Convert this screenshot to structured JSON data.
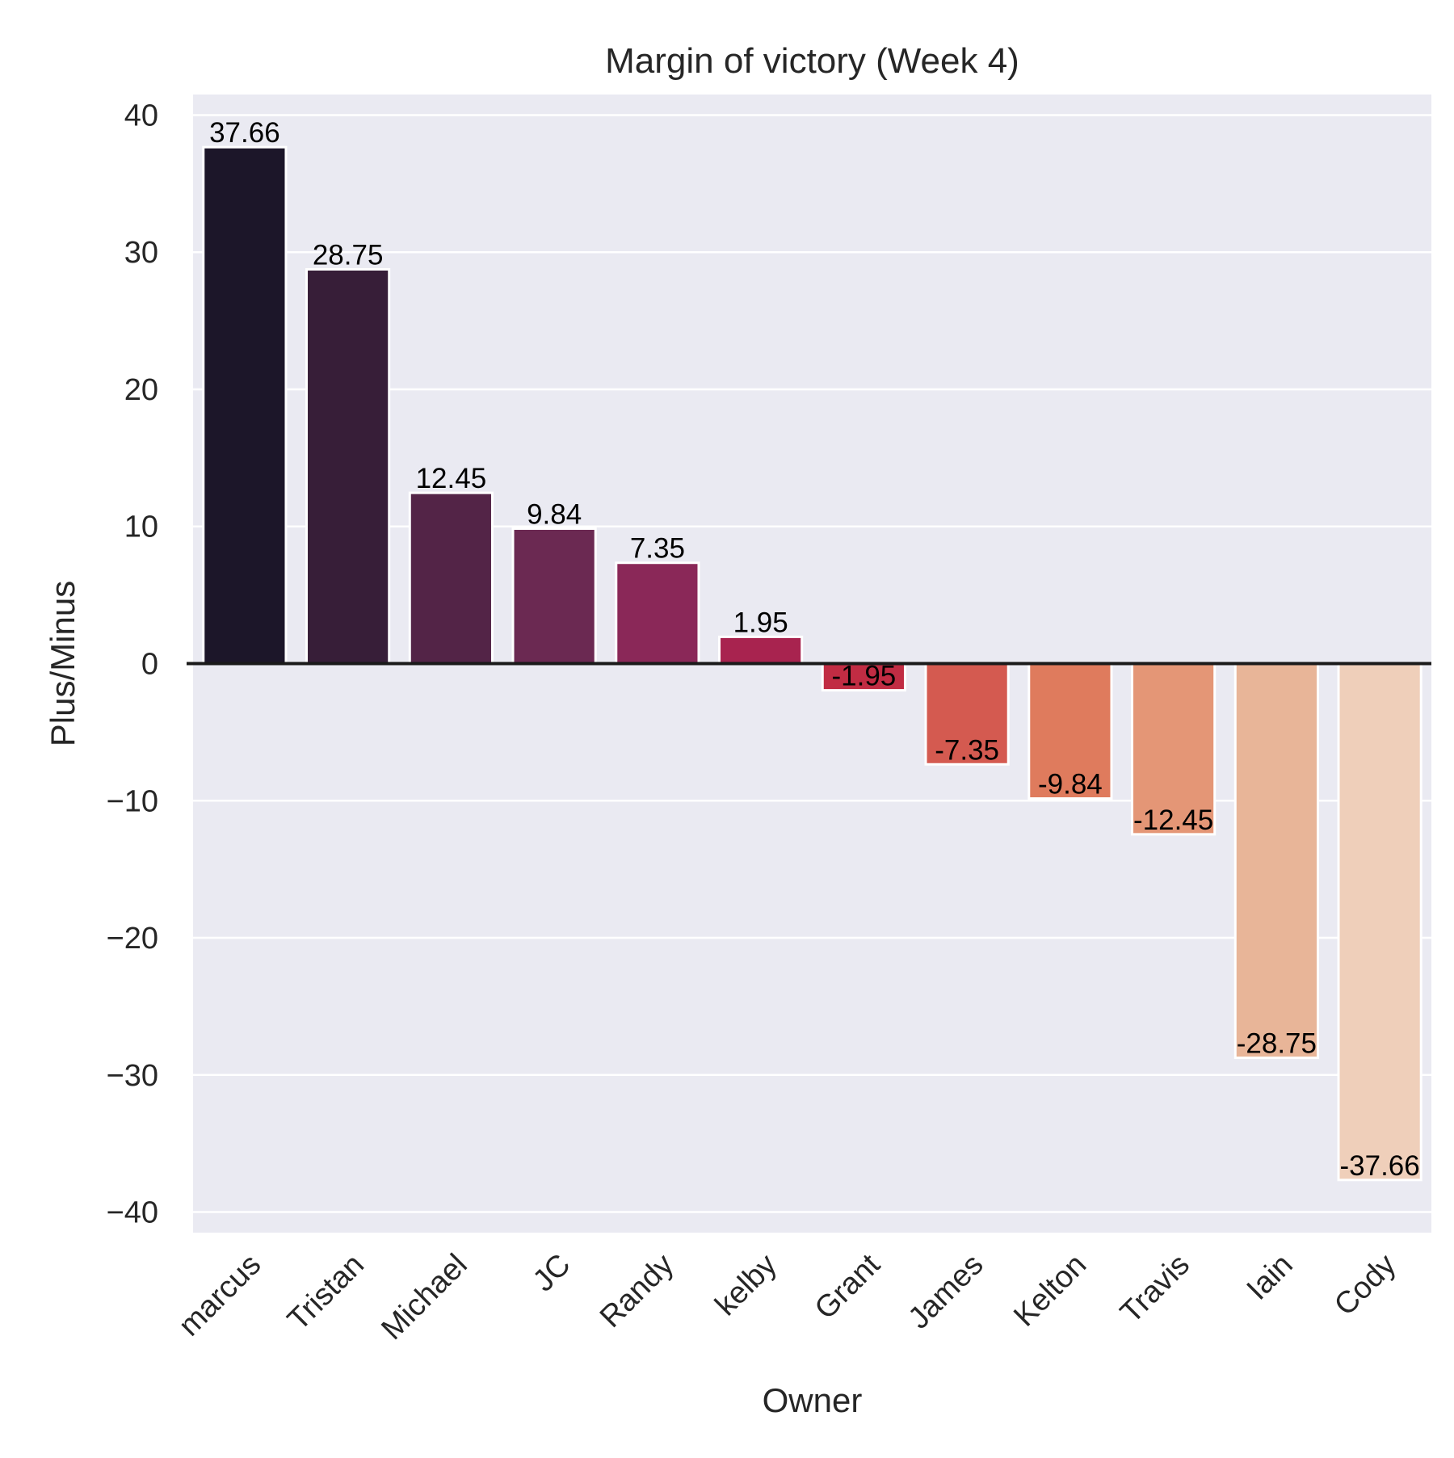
{
  "chart_data": {
    "type": "bar",
    "title": "Margin of victory (Week 4)",
    "xlabel": "Owner",
    "ylabel": "Plus/Minus",
    "categories": [
      "marcus",
      "Tristan",
      "Michael",
      "JC",
      "Randy",
      "kelby",
      "Grant",
      "James",
      "Kelton",
      "Travis",
      "Iain",
      "Cody"
    ],
    "values": [
      37.66,
      28.75,
      12.45,
      9.84,
      7.35,
      1.95,
      -1.95,
      -7.35,
      -9.84,
      -12.45,
      -28.75,
      -37.66
    ],
    "value_labels": [
      "37.66",
      "28.75",
      "12.45",
      "9.84",
      "7.35",
      "1.95",
      "-1.95",
      "-7.35",
      "-9.84",
      "-12.45",
      "-28.75",
      "-37.66"
    ],
    "colors": [
      "#1c1629",
      "#371e38",
      "#532447",
      "#6b2952",
      "#8a2858",
      "#a8234f",
      "#c12c43",
      "#d45a50",
      "#df7b5d",
      "#e49676",
      "#e8b598",
      "#efcfba"
    ],
    "ylim": [
      -41.5,
      41.5
    ],
    "yticks": [
      40,
      30,
      20,
      10,
      0,
      -10,
      -20,
      -30,
      -40
    ],
    "ytick_labels": [
      "40",
      "30",
      "20",
      "10",
      "0",
      "−10",
      "−20",
      "−30",
      "−40"
    ],
    "grid": true,
    "background": "#eaeaf2"
  }
}
